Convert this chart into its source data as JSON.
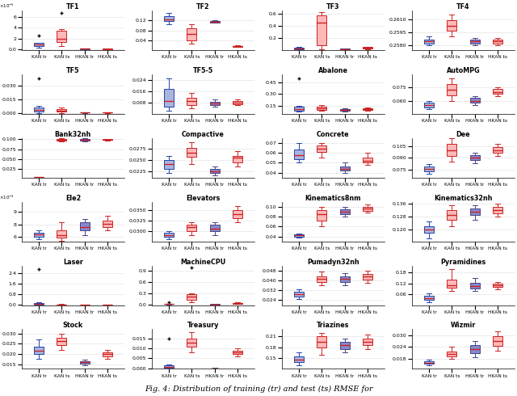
{
  "panels": [
    {
      "title": "TF1",
      "sci_exp": -5,
      "data": {
        "KAN tr": [
          3e-06,
          5e-06,
          7e-06,
          9e-06,
          1.2e-05,
          2.5e-05
        ],
        "KAN ts": [
          5e-06,
          1.2e-05,
          1.5e-05,
          2.5e-05,
          3.8e-05,
          6.8e-05
        ],
        "HKAN tr": [
          2e-07,
          3e-07,
          5e-07,
          6e-07,
          8e-07
        ],
        "HKAN ts": [
          1e-07,
          2e-07,
          3e-07,
          4e-07,
          5e-07
        ]
      },
      "ylim": [
        -2e-06,
        7.2e-05
      ]
    },
    {
      "title": "TF2",
      "data": {
        "KAN tr": [
          0.105,
          0.115,
          0.12,
          0.125,
          0.13,
          0.148,
          0.15
        ],
        "KAN ts": [
          0.025,
          0.035,
          0.045,
          0.065,
          0.085,
          0.095,
          0.105
        ],
        "HKAN tr": [
          0.11,
          0.113,
          0.115,
          0.117,
          0.12
        ],
        "HKAN ts": [
          0.012,
          0.014,
          0.016,
          0.018,
          0.02
        ]
      },
      "ylim": [
        0,
        0.16
      ]
    },
    {
      "title": "TF3",
      "data": {
        "KAN tr": [
          0.01,
          0.02,
          0.03,
          0.04,
          0.05
        ],
        "KAN ts": [
          0.02,
          0.05,
          0.1,
          0.45,
          0.55,
          0.6,
          0.62
        ],
        "HKAN tr": [
          0.01,
          0.015,
          0.02,
          0.025,
          0.03
        ],
        "HKAN ts": [
          0.02,
          0.03,
          0.04,
          0.05,
          0.06
        ]
      },
      "ylim": [
        0,
        0.65
      ]
    },
    {
      "title": "TF4",
      "data": {
        "KAN tr": [
          0.258,
          0.2582,
          0.2584,
          0.2586,
          0.259
        ],
        "KAN ts": [
          0.259,
          0.2595,
          0.26,
          0.2605,
          0.261,
          0.2615
        ],
        "HKAN tr": [
          0.258,
          0.2582,
          0.2584,
          0.2586,
          0.2588
        ],
        "HKAN ts": [
          0.258,
          0.2582,
          0.2584,
          0.2586,
          0.2588
        ]
      },
      "ylim": [
        0.2574,
        0.262
      ]
    },
    {
      "title": "TF5",
      "data": {
        "KAN tr": [
          0.0,
          0.001,
          0.002,
          0.003,
          0.004,
          0.008,
          0.038
        ],
        "KAN ts": [
          0.0,
          0.001,
          0.002,
          0.003,
          0.005,
          0.006
        ],
        "HKAN tr": [
          0.0,
          0.0003,
          0.0005,
          0.0008,
          0.001
        ],
        "HKAN ts": [
          0.0,
          0.0003,
          0.0005,
          0.0008,
          0.001
        ]
      },
      "ylim": [
        -0.001,
        0.042
      ]
    },
    {
      "title": "TF5-5",
      "data": {
        "KAN tr": [
          0.002,
          0.004,
          0.006,
          0.009,
          0.015,
          0.02,
          0.025
        ],
        "KAN ts": [
          0.004,
          0.006,
          0.008,
          0.01,
          0.012,
          0.015
        ],
        "HKAN tr": [
          0.005,
          0.006,
          0.007,
          0.008,
          0.009,
          0.01
        ],
        "HKAN ts": [
          0.006,
          0.007,
          0.008,
          0.009,
          0.01
        ]
      },
      "ylim": [
        0,
        0.028
      ]
    },
    {
      "title": "Abalone",
      "data": {
        "KAN tr": [
          0.08,
          0.09,
          0.1,
          0.12,
          0.15,
          0.5
        ],
        "KAN ts": [
          0.09,
          0.1,
          0.12,
          0.14,
          0.16
        ],
        "HKAN tr": [
          0.08,
          0.09,
          0.1,
          0.11,
          0.12
        ],
        "HKAN ts": [
          0.09,
          0.1,
          0.11,
          0.12,
          0.13
        ]
      },
      "ylim": [
        0.05,
        0.55
      ]
    },
    {
      "title": "AutoMPG",
      "data": {
        "KAN tr": [
          0.05,
          0.052,
          0.055,
          0.058,
          0.06
        ],
        "KAN ts": [
          0.06,
          0.065,
          0.07,
          0.075,
          0.08,
          0.085
        ],
        "HKAN tr": [
          0.055,
          0.058,
          0.06,
          0.063,
          0.065
        ],
        "HKAN ts": [
          0.065,
          0.068,
          0.07,
          0.073,
          0.075
        ]
      },
      "ylim": [
        0.045,
        0.09
      ]
    },
    {
      "title": "Bank32nh",
      "data": {
        "KAN tr": [
          0.004,
          0.0042,
          0.0044,
          0.0046,
          0.0048
        ],
        "KAN ts": [
          0.094,
          0.096,
          0.098,
          0.099,
          0.1,
          0.101,
          0.102
        ],
        "HKAN tr": [
          0.095,
          0.097,
          0.099,
          0.1,
          0.101,
          0.102
        ],
        "HKAN ts": [
          0.096,
          0.098,
          0.099,
          0.1,
          0.101
        ]
      },
      "ylim": [
        0.0034,
        0.103
      ]
    },
    {
      "title": "Compactive",
      "data": {
        "KAN tr": [
          0.022,
          0.023,
          0.024,
          0.025,
          0.026
        ],
        "KAN ts": [
          0.024,
          0.0255,
          0.0265,
          0.027,
          0.028,
          0.029
        ],
        "HKAN tr": [
          0.0215,
          0.022,
          0.0225,
          0.023,
          0.0235
        ],
        "HKAN ts": [
          0.0235,
          0.0245,
          0.0255,
          0.026,
          0.027
        ]
      },
      "ylim": [
        0.021,
        0.03
      ]
    },
    {
      "title": "Concrete",
      "data": {
        "KAN tr": [
          0.05,
          0.052,
          0.055,
          0.058,
          0.062,
          0.065,
          0.07
        ],
        "KAN ts": [
          0.055,
          0.06,
          0.063,
          0.065,
          0.068,
          0.07
        ],
        "HKAN tr": [
          0.04,
          0.042,
          0.044,
          0.046,
          0.05
        ],
        "HKAN ts": [
          0.048,
          0.05,
          0.052,
          0.055,
          0.06
        ]
      },
      "ylim": [
        0.035,
        0.075
      ]
    },
    {
      "title": "Dee",
      "data": {
        "KAN tr": [
          0.07,
          0.073,
          0.076,
          0.079,
          0.082
        ],
        "KAN ts": [
          0.085,
          0.09,
          0.095,
          0.1,
          0.105,
          0.11,
          0.115
        ],
        "HKAN tr": [
          0.083,
          0.087,
          0.09,
          0.093,
          0.096
        ],
        "HKAN ts": [
          0.092,
          0.096,
          0.1,
          0.104,
          0.108
        ]
      },
      "ylim": [
        0.065,
        0.115
      ]
    },
    {
      "title": "Ele2",
      "sci_exp": -3,
      "data": {
        "KAN tr": [
          0.0058,
          0.006,
          0.0063,
          0.0065,
          0.0068
        ],
        "KAN ts": [
          0.0056,
          0.0059,
          0.0061,
          0.0064,
          0.007,
          0.0078
        ],
        "HKAN tr": [
          0.0062,
          0.0068,
          0.0072,
          0.0078,
          0.0082
        ],
        "HKAN ts": [
          0.0068,
          0.0072,
          0.0076,
          0.008,
          0.0085
        ]
      },
      "ylim": [
        0.0055,
        0.0102
      ]
    },
    {
      "title": "Elevators",
      "data": {
        "KAN tr": [
          0.028,
          0.0285,
          0.029,
          0.0295,
          0.03
        ],
        "KAN ts": [
          0.029,
          0.03,
          0.031,
          0.0315,
          0.032
        ],
        "HKAN tr": [
          0.029,
          0.03,
          0.0305,
          0.0315,
          0.032
        ],
        "HKAN ts": [
          0.032,
          0.033,
          0.034,
          0.035,
          0.036
        ]
      },
      "ylim": [
        0.0275,
        0.037
      ]
    },
    {
      "title": "Kinematics8nm",
      "data": {
        "KAN tr": [
          0.038,
          0.04,
          0.042,
          0.044,
          0.046
        ],
        "KAN ts": [
          0.06,
          0.07,
          0.08,
          0.09,
          0.095,
          0.1
        ],
        "HKAN tr": [
          0.08,
          0.085,
          0.09,
          0.095,
          0.1
        ],
        "HKAN ts": [
          0.088,
          0.092,
          0.096,
          0.1,
          0.104
        ]
      },
      "ylim": [
        0.03,
        0.11
      ]
    },
    {
      "title": "Kinematics32nh",
      "data": {
        "KAN tr": [
          0.115,
          0.118,
          0.12,
          0.122,
          0.125
        ],
        "KAN ts": [
          0.122,
          0.126,
          0.129,
          0.132,
          0.135
        ],
        "HKAN tr": [
          0.126,
          0.129,
          0.131,
          0.133,
          0.135
        ],
        "HKAN ts": [
          0.128,
          0.13,
          0.132,
          0.134,
          0.136
        ]
      },
      "ylim": [
        0.113,
        0.137
      ]
    },
    {
      "title": "Laser",
      "data": {
        "KAN tr": [
          0.0,
          0.005,
          0.01,
          0.02,
          0.05,
          0.15,
          2.75
        ],
        "KAN ts": [
          0.0,
          0.003,
          0.005,
          0.008,
          0.012,
          0.015
        ],
        "HKAN tr": [
          0.0,
          0.001,
          0.002,
          0.003,
          0.004
        ],
        "HKAN ts": [
          0.0,
          0.001,
          0.002,
          0.003,
          0.004
        ]
      },
      "ylim": [
        -0.05,
        3.0
      ]
    },
    {
      "title": "MachineCPU",
      "data": {
        "KAN tr": [
          0.0,
          0.002,
          0.005,
          0.01,
          0.02,
          0.05
        ],
        "KAN ts": [
          0.05,
          0.1,
          0.15,
          0.2,
          0.25,
          0.3,
          1.0
        ],
        "HKAN tr": [
          0.0,
          0.001,
          0.002,
          0.003,
          0.005
        ],
        "HKAN ts": [
          0.01,
          0.02,
          0.03,
          0.04,
          0.05
        ]
      },
      "ylim": [
        -0.02,
        1.05
      ]
    },
    {
      "title": "Pumadyn32nh",
      "data": {
        "KAN tr": [
          0.025,
          0.027,
          0.029,
          0.031,
          0.033
        ],
        "KAN ts": [
          0.036,
          0.038,
          0.04,
          0.042,
          0.044,
          0.047
        ],
        "HKAN tr": [
          0.036,
          0.038,
          0.04,
          0.042,
          0.044,
          0.046
        ],
        "HKAN ts": [
          0.038,
          0.04,
          0.042,
          0.044,
          0.046,
          0.048
        ]
      },
      "ylim": [
        0.02,
        0.052
      ]
    },
    {
      "title": "Pyramidines",
      "data": {
        "KAN tr": [
          0.015,
          0.025,
          0.035,
          0.045,
          0.055,
          0.065
        ],
        "KAN ts": [
          0.08,
          0.09,
          0.1,
          0.11,
          0.12,
          0.16,
          0.2
        ],
        "HKAN tr": [
          0.08,
          0.09,
          0.1,
          0.11,
          0.13,
          0.15
        ],
        "HKAN ts": [
          0.09,
          0.1,
          0.11,
          0.12,
          0.13
        ]
      },
      "ylim": [
        0,
        0.22
      ]
    },
    {
      "title": "Stock",
      "data": {
        "KAN tr": [
          0.018,
          0.02,
          0.021,
          0.022,
          0.024,
          0.027
        ],
        "KAN ts": [
          0.022,
          0.024,
          0.026,
          0.027,
          0.028,
          0.03
        ],
        "HKAN tr": [
          0.0148,
          0.0155,
          0.0162,
          0.0168,
          0.0175
        ],
        "HKAN ts": [
          0.018,
          0.019,
          0.02,
          0.021,
          0.022
        ]
      },
      "ylim": [
        0.013,
        0.032
      ]
    },
    {
      "title": "Treasury",
      "data": {
        "KAN tr": [
          0.0001,
          0.0003,
          0.0006,
          0.001,
          0.002,
          0.015
        ],
        "KAN ts": [
          0.008,
          0.01,
          0.012,
          0.013,
          0.014,
          0.016,
          0.018
        ],
        "HKAN tr": [
          0.0,
          5e-05,
          0.0001,
          0.00015,
          0.0002
        ],
        "HKAN ts": [
          0.006,
          0.007,
          0.008,
          0.009,
          0.01
        ]
      },
      "ylim": [
        -0.0002,
        0.0195
      ]
    },
    {
      "title": "Triazines",
      "data": {
        "KAN tr": [
          0.13,
          0.138,
          0.145,
          0.155,
          0.165
        ],
        "KAN ts": [
          0.16,
          0.175,
          0.185,
          0.195,
          0.205,
          0.215,
          0.22
        ],
        "HKAN tr": [
          0.165,
          0.175,
          0.185,
          0.195,
          0.205
        ],
        "HKAN ts": [
          0.175,
          0.185,
          0.195,
          0.205,
          0.215
        ]
      },
      "ylim": [
        0.12,
        0.23
      ]
    },
    {
      "title": "Wizmir",
      "data": {
        "KAN tr": [
          0.0148,
          0.0155,
          0.0162,
          0.0168,
          0.0175
        ],
        "KAN ts": [
          0.018,
          0.019,
          0.02,
          0.021,
          0.022,
          0.024
        ],
        "HKAN tr": [
          0.019,
          0.021,
          0.023,
          0.025,
          0.027
        ],
        "HKAN ts": [
          0.022,
          0.024,
          0.026,
          0.028,
          0.03,
          0.032
        ]
      },
      "ylim": [
        0.013,
        0.033
      ]
    }
  ],
  "labels": [
    "KAN tr",
    "KAN ts",
    "HKAN tr",
    "HKAN ts"
  ],
  "caption": "Fig. 4: Distribution of training (tr) and test (ts) RMSE for",
  "nrows": 6,
  "ncols": 4
}
